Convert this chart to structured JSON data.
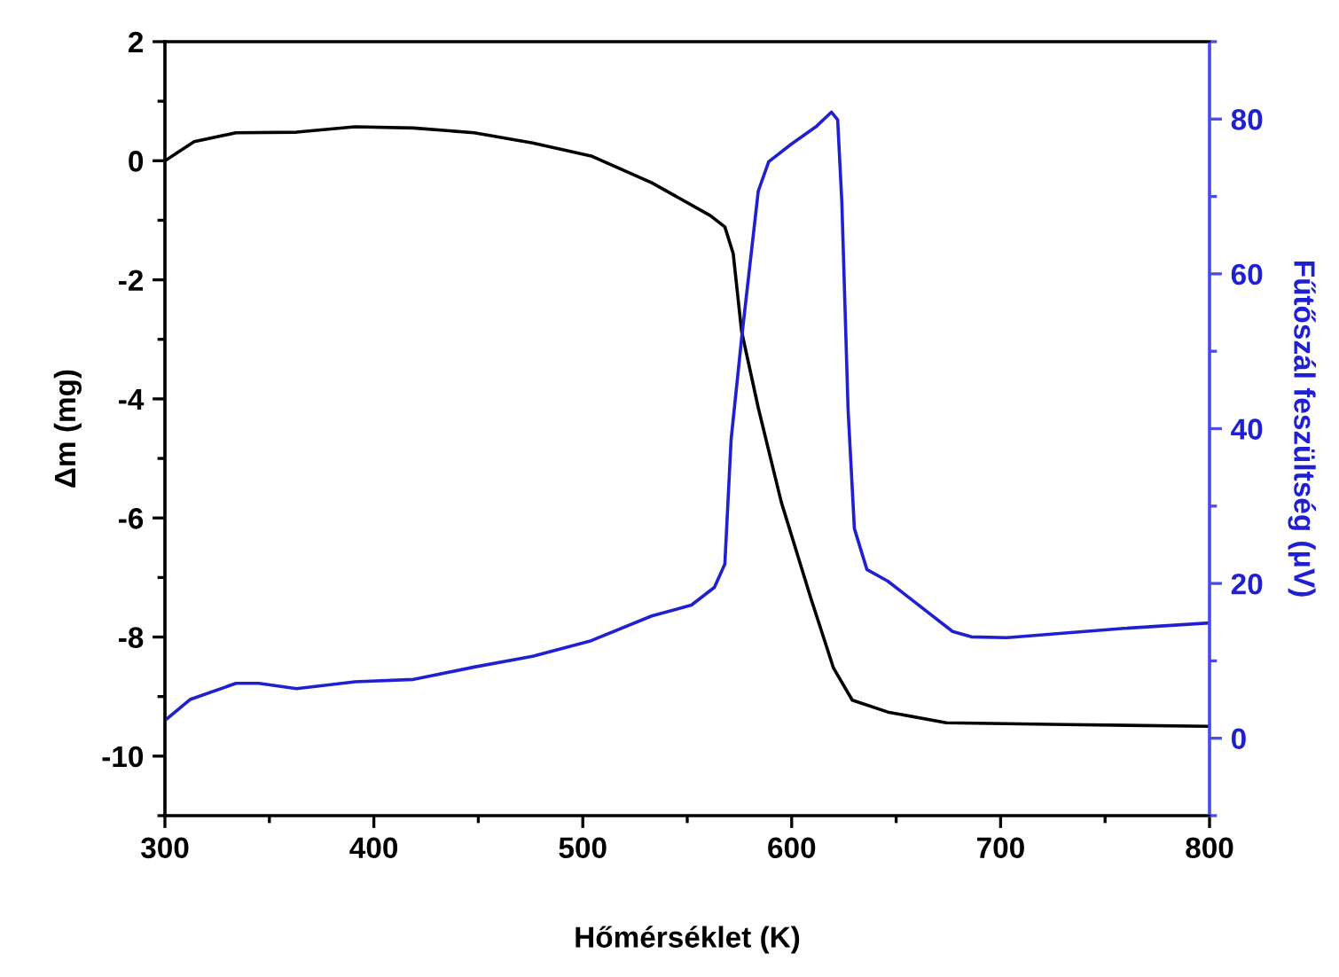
{
  "chart_data": {
    "type": "line",
    "xlabel": "Hőmérséklet (K)",
    "ylabel": "Δm (mg)",
    "y2label": "Fűtőszál feszültség (μV)",
    "xlim": [
      300,
      800
    ],
    "xticks": [
      300,
      400,
      500,
      600,
      700,
      800
    ],
    "ylim": [
      -11,
      2
    ],
    "yticks": [
      -10,
      -8,
      -6,
      -4,
      -2,
      0,
      2
    ],
    "y2lim": [
      -10,
      90
    ],
    "y2ticks": [
      0,
      20,
      40,
      60,
      80
    ],
    "grid": false,
    "legend": false,
    "marker": "none",
    "line_style": "solid",
    "series": [
      {
        "color": "#000000",
        "x": [
          300,
          314,
          334,
          363,
          391,
          419,
          448,
          476,
          504,
          533,
          561,
          568,
          572,
          576,
          584,
          595,
          609,
          620,
          629,
          646,
          674,
          731,
          800
        ],
        "values": [
          0,
          0.32,
          0.47,
          0.48,
          0.57,
          0.55,
          0.47,
          0.3,
          0.08,
          -0.37,
          -0.92,
          -1.11,
          -1.56,
          -2.86,
          -4.15,
          -5.73,
          -7.33,
          -8.52,
          -9.06,
          -9.26,
          -9.44,
          -9.47,
          -9.5
        ]
      },
      {
        "color": "#2020d0",
        "axis": "y2",
        "x": [
          300,
          312,
          334,
          345,
          363,
          391,
          419,
          448,
          476,
          504,
          533,
          552,
          563,
          568,
          571,
          576,
          584,
          589,
          600,
          612,
          619,
          622,
          624,
          627,
          630,
          636,
          646,
          657,
          677,
          686,
          703,
          759,
          800
        ],
        "values": [
          2.3,
          5.0,
          7.1,
          7.1,
          6.4,
          7.3,
          7.6,
          9.2,
          10.6,
          12.6,
          15.8,
          17.2,
          19.5,
          22.5,
          38.6,
          51.6,
          70.7,
          74.5,
          76.8,
          79.1,
          80.9,
          79.9,
          69.3,
          42.4,
          27.1,
          21.8,
          20.3,
          18.0,
          13.8,
          13.1,
          13.0,
          14.2,
          14.9
        ]
      }
    ]
  }
}
